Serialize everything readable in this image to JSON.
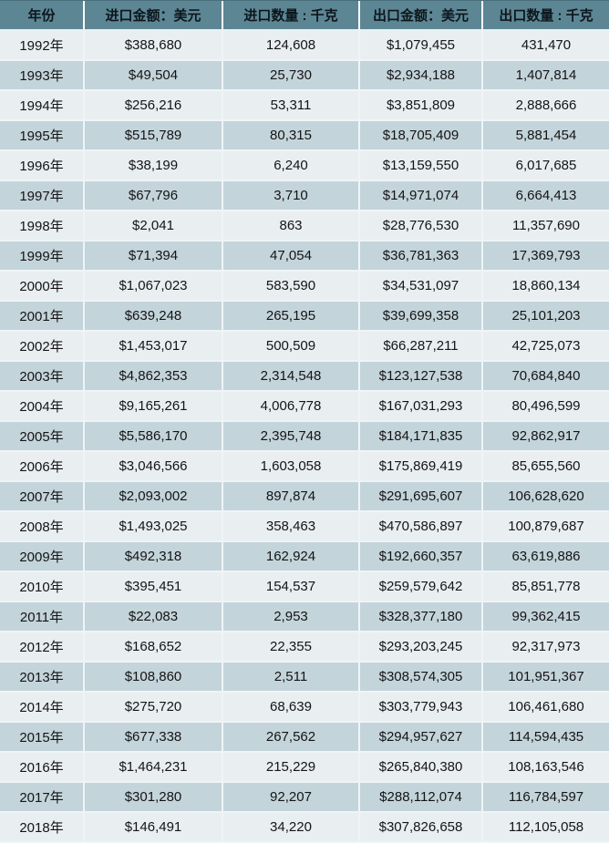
{
  "table": {
    "columns": [
      "年份",
      "进口金额：美元",
      "进口数量 : 千克",
      "出口金额：美元",
      "出口数量 : 千克"
    ],
    "rows": [
      [
        "1992年",
        "$388,680",
        "124,608",
        "$1,079,455",
        "431,470"
      ],
      [
        "1993年",
        "$49,504",
        "25,730",
        "$2,934,188",
        "1,407,814"
      ],
      [
        "1994年",
        "$256,216",
        "53,311",
        "$3,851,809",
        "2,888,666"
      ],
      [
        "1995年",
        "$515,789",
        "80,315",
        "$18,705,409",
        "5,881,454"
      ],
      [
        "1996年",
        "$38,199",
        "6,240",
        "$13,159,550",
        "6,017,685"
      ],
      [
        "1997年",
        "$67,796",
        "3,710",
        "$14,971,074",
        "6,664,413"
      ],
      [
        "1998年",
        "$2,041",
        "863",
        "$28,776,530",
        "11,357,690"
      ],
      [
        "1999年",
        "$71,394",
        "47,054",
        "$36,781,363",
        "17,369,793"
      ],
      [
        "2000年",
        "$1,067,023",
        "583,590",
        "$34,531,097",
        "18,860,134"
      ],
      [
        "2001年",
        "$639,248",
        "265,195",
        "$39,699,358",
        "25,101,203"
      ],
      [
        "2002年",
        "$1,453,017",
        "500,509",
        "$66,287,211",
        "42,725,073"
      ],
      [
        "2003年",
        "$4,862,353",
        "2,314,548",
        "$123,127,538",
        "70,684,840"
      ],
      [
        "2004年",
        "$9,165,261",
        "4,006,778",
        "$167,031,293",
        "80,496,599"
      ],
      [
        "2005年",
        "$5,586,170",
        "2,395,748",
        "$184,171,835",
        "92,862,917"
      ],
      [
        "2006年",
        "$3,046,566",
        "1,603,058",
        "$175,869,419",
        "85,655,560"
      ],
      [
        "2007年",
        "$2,093,002",
        "897,874",
        "$291,695,607",
        "106,628,620"
      ],
      [
        "2008年",
        "$1,493,025",
        "358,463",
        "$470,586,897",
        "100,879,687"
      ],
      [
        "2009年",
        "$492,318",
        "162,924",
        "$192,660,357",
        "63,619,886"
      ],
      [
        "2010年",
        "$395,451",
        "154,537",
        "$259,579,642",
        "85,851,778"
      ],
      [
        "2011年",
        "$22,083",
        "2,953",
        "$328,377,180",
        "99,362,415"
      ],
      [
        "2012年",
        "$168,652",
        "22,355",
        "$293,203,245",
        "92,317,973"
      ],
      [
        "2013年",
        "$108,860",
        "2,511",
        "$308,574,305",
        "101,951,367"
      ],
      [
        "2014年",
        "$275,720",
        "68,639",
        "$303,779,943",
        "106,461,680"
      ],
      [
        "2015年",
        "$677,338",
        "267,562",
        "$294,957,627",
        "114,594,435"
      ],
      [
        "2016年",
        "$1,464,231",
        "215,229",
        "$265,840,380",
        "108,163,546"
      ],
      [
        "2017年",
        "$301,280",
        "92,207",
        "$288,112,074",
        "116,784,597"
      ],
      [
        "2018年",
        "$146,491",
        "34,220",
        "$307,826,658",
        "112,105,058"
      ]
    ]
  },
  "colors": {
    "header_background": "#5c8694",
    "row_light": "#e9eef1",
    "row_dark": "#c4d4db",
    "separator": "#eff5f7",
    "text": "#141414"
  },
  "chart_data": {
    "type": "table",
    "columns": [
      "年份",
      "进口金额：美元",
      "进口数量：千克",
      "出口金额：美元",
      "出口数量：千克"
    ],
    "x": [
      "1992",
      "1993",
      "1994",
      "1995",
      "1996",
      "1997",
      "1998",
      "1999",
      "2000",
      "2001",
      "2002",
      "2003",
      "2004",
      "2005",
      "2006",
      "2007",
      "2008",
      "2009",
      "2010",
      "2011",
      "2012",
      "2013",
      "2014",
      "2015",
      "2016",
      "2017",
      "2018"
    ],
    "series": [
      {
        "name": "进口金额（美元）",
        "values": [
          388680,
          49504,
          256216,
          515789,
          38199,
          67796,
          2041,
          71394,
          1067023,
          639248,
          1453017,
          4862353,
          9165261,
          5586170,
          3046566,
          2093002,
          1493025,
          492318,
          395451,
          22083,
          168652,
          108860,
          275720,
          677338,
          1464231,
          301280,
          146491
        ]
      },
      {
        "name": "进口数量（千克）",
        "values": [
          124608,
          25730,
          53311,
          80315,
          6240,
          3710,
          863,
          47054,
          583590,
          265195,
          500509,
          2314548,
          4006778,
          2395748,
          1603058,
          897874,
          358463,
          162924,
          154537,
          2953,
          22355,
          2511,
          68639,
          267562,
          215229,
          92207,
          34220
        ]
      },
      {
        "name": "出口金额（美元）",
        "values": [
          1079455,
          2934188,
          3851809,
          18705409,
          13159550,
          14971074,
          28776530,
          36781363,
          34531097,
          39699358,
          66287211,
          123127538,
          167031293,
          184171835,
          175869419,
          291695607,
          470586897,
          192660357,
          259579642,
          328377180,
          293203245,
          308574305,
          303779943,
          294957627,
          265840380,
          288112074,
          307826658
        ]
      },
      {
        "name": "出口数量（千克）",
        "values": [
          431470,
          1407814,
          2888666,
          5881454,
          6017685,
          6664413,
          11357690,
          17369793,
          18860134,
          25101203,
          42725073,
          70684840,
          80496599,
          92862917,
          85655560,
          106628620,
          100879687,
          63619886,
          85851778,
          99362415,
          92317973,
          101951367,
          106461680,
          114594435,
          108163546,
          116784597,
          112105058
        ]
      }
    ],
    "title": "",
    "legend_position": "none",
    "grid": false
  }
}
